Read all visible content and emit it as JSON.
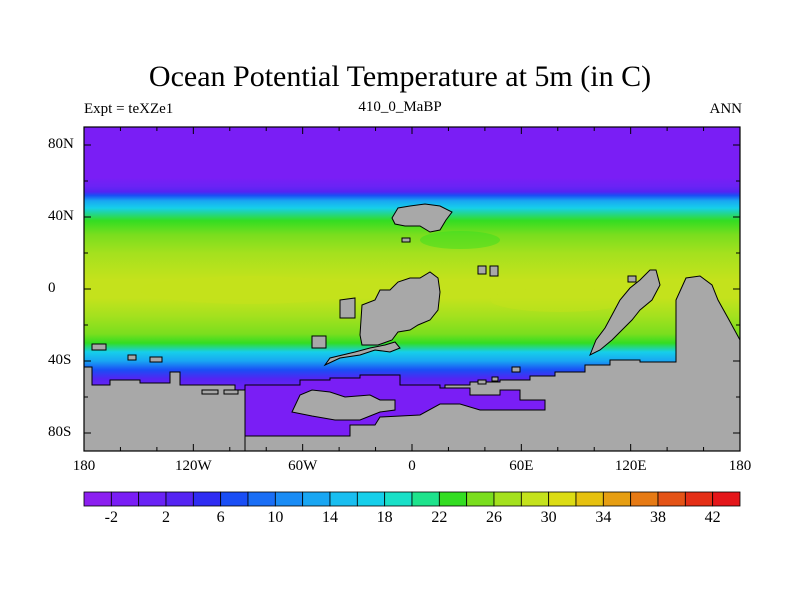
{
  "title": "Ocean Potential Temperature at 5m (in C)",
  "left_label": "Expt = teXZe1",
  "center_label": "410_0_MaBP",
  "right_label": "ANN",
  "map": {
    "projection": "cylindrical equidistant",
    "lon_range": [
      -180,
      180
    ],
    "lat_range": [
      -90,
      90
    ],
    "y_tick_labels": [
      "80N",
      "40N",
      "0",
      "40S",
      "80S"
    ],
    "y_tick_values": [
      80,
      40,
      0,
      -40,
      -80
    ],
    "x_tick_labels": [
      "180",
      "120W",
      "60W",
      "0",
      "60E",
      "120E",
      "180"
    ],
    "x_tick_values": [
      -180,
      -120,
      -60,
      0,
      60,
      120,
      180
    ],
    "land_color": "#a8a8a8",
    "zonal_profile_lat": [
      90,
      75,
      62,
      57,
      54,
      52,
      49,
      45,
      38,
      30,
      20,
      5,
      -5,
      -15,
      -25,
      -30,
      -35,
      -40,
      -45,
      -50,
      -55,
      -60,
      -90
    ],
    "zonal_profile_temp": [
      -2,
      -2,
      -1.5,
      0,
      3,
      7,
      12,
      17,
      22,
      25,
      27,
      28,
      28,
      27,
      25,
      22,
      17,
      12,
      7,
      3,
      0,
      -1.5,
      -2
    ]
  },
  "colorbar": {
    "levels": [
      -4,
      -2,
      0,
      2,
      4,
      6,
      8,
      10,
      12,
      14,
      16,
      18,
      20,
      22,
      24,
      26,
      28,
      30,
      32,
      34,
      36,
      38,
      40,
      42,
      44
    ],
    "colors": [
      "#8c1ff0",
      "#7a1ef5",
      "#6a23f5",
      "#5524f2",
      "#2f2cf2",
      "#1a4ef5",
      "#1a6ef5",
      "#1a8cf5",
      "#19a6f2",
      "#19bef0",
      "#16cfea",
      "#19e0c8",
      "#1ee38c",
      "#33dd22",
      "#7ade1e",
      "#a4e11e",
      "#c4e21c",
      "#dcdc14",
      "#e6c10f",
      "#e69e12",
      "#e67a14",
      "#e45316",
      "#e42f16",
      "#e4161a"
    ],
    "tick_labels": [
      "-2",
      "2",
      "6",
      "10",
      "14",
      "18",
      "22",
      "26",
      "30",
      "34",
      "38",
      "42"
    ],
    "tick_values": [
      -2,
      2,
      6,
      10,
      14,
      18,
      22,
      26,
      30,
      34,
      38,
      42
    ]
  }
}
